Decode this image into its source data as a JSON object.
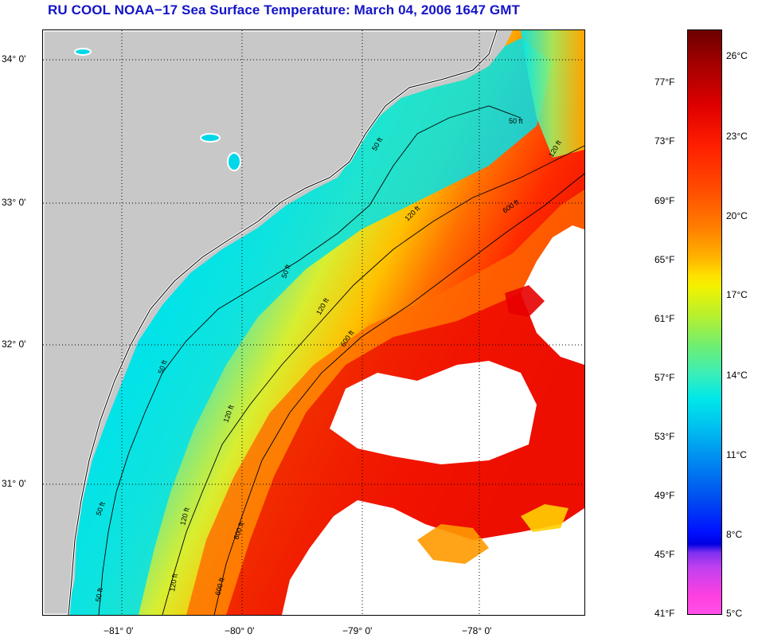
{
  "title": "RU COOL  NOAA−17  Sea Surface Temperature:  March 04, 2006 1647 GMT",
  "map": {
    "latitude_labels": [
      "34° 0'",
      "33° 0'",
      "32° 0'",
      "31° 0'"
    ],
    "longitude_labels": [
      "−81° 0'",
      "−80° 0'",
      "−79° 0'",
      "−78° 0'"
    ],
    "isobath_labels": [
      "50 ft",
      "50 ft",
      "50 ft",
      "50 ft",
      "50 ft",
      "50 ft",
      "120 ft",
      "120 ft",
      "120 ft",
      "120 ft",
      "120 ft",
      "120 ft",
      "600 ft",
      "600 ft",
      "600 ft",
      "600 ft"
    ],
    "land_color": "#c8c8c8",
    "no_data_color": "#ffffff"
  },
  "colorbar": {
    "fahrenheit_labels": [
      "77°F",
      "73°F",
      "69°F",
      "65°F",
      "61°F",
      "57°F",
      "53°F",
      "49°F",
      "45°F",
      "41°F"
    ],
    "celsius_labels": [
      "26°C",
      "23°C",
      "20°C",
      "17°C",
      "14°C",
      "11°C",
      "8°C",
      "5°C"
    ],
    "min_c": 5,
    "max_c": 27.5
  }
}
